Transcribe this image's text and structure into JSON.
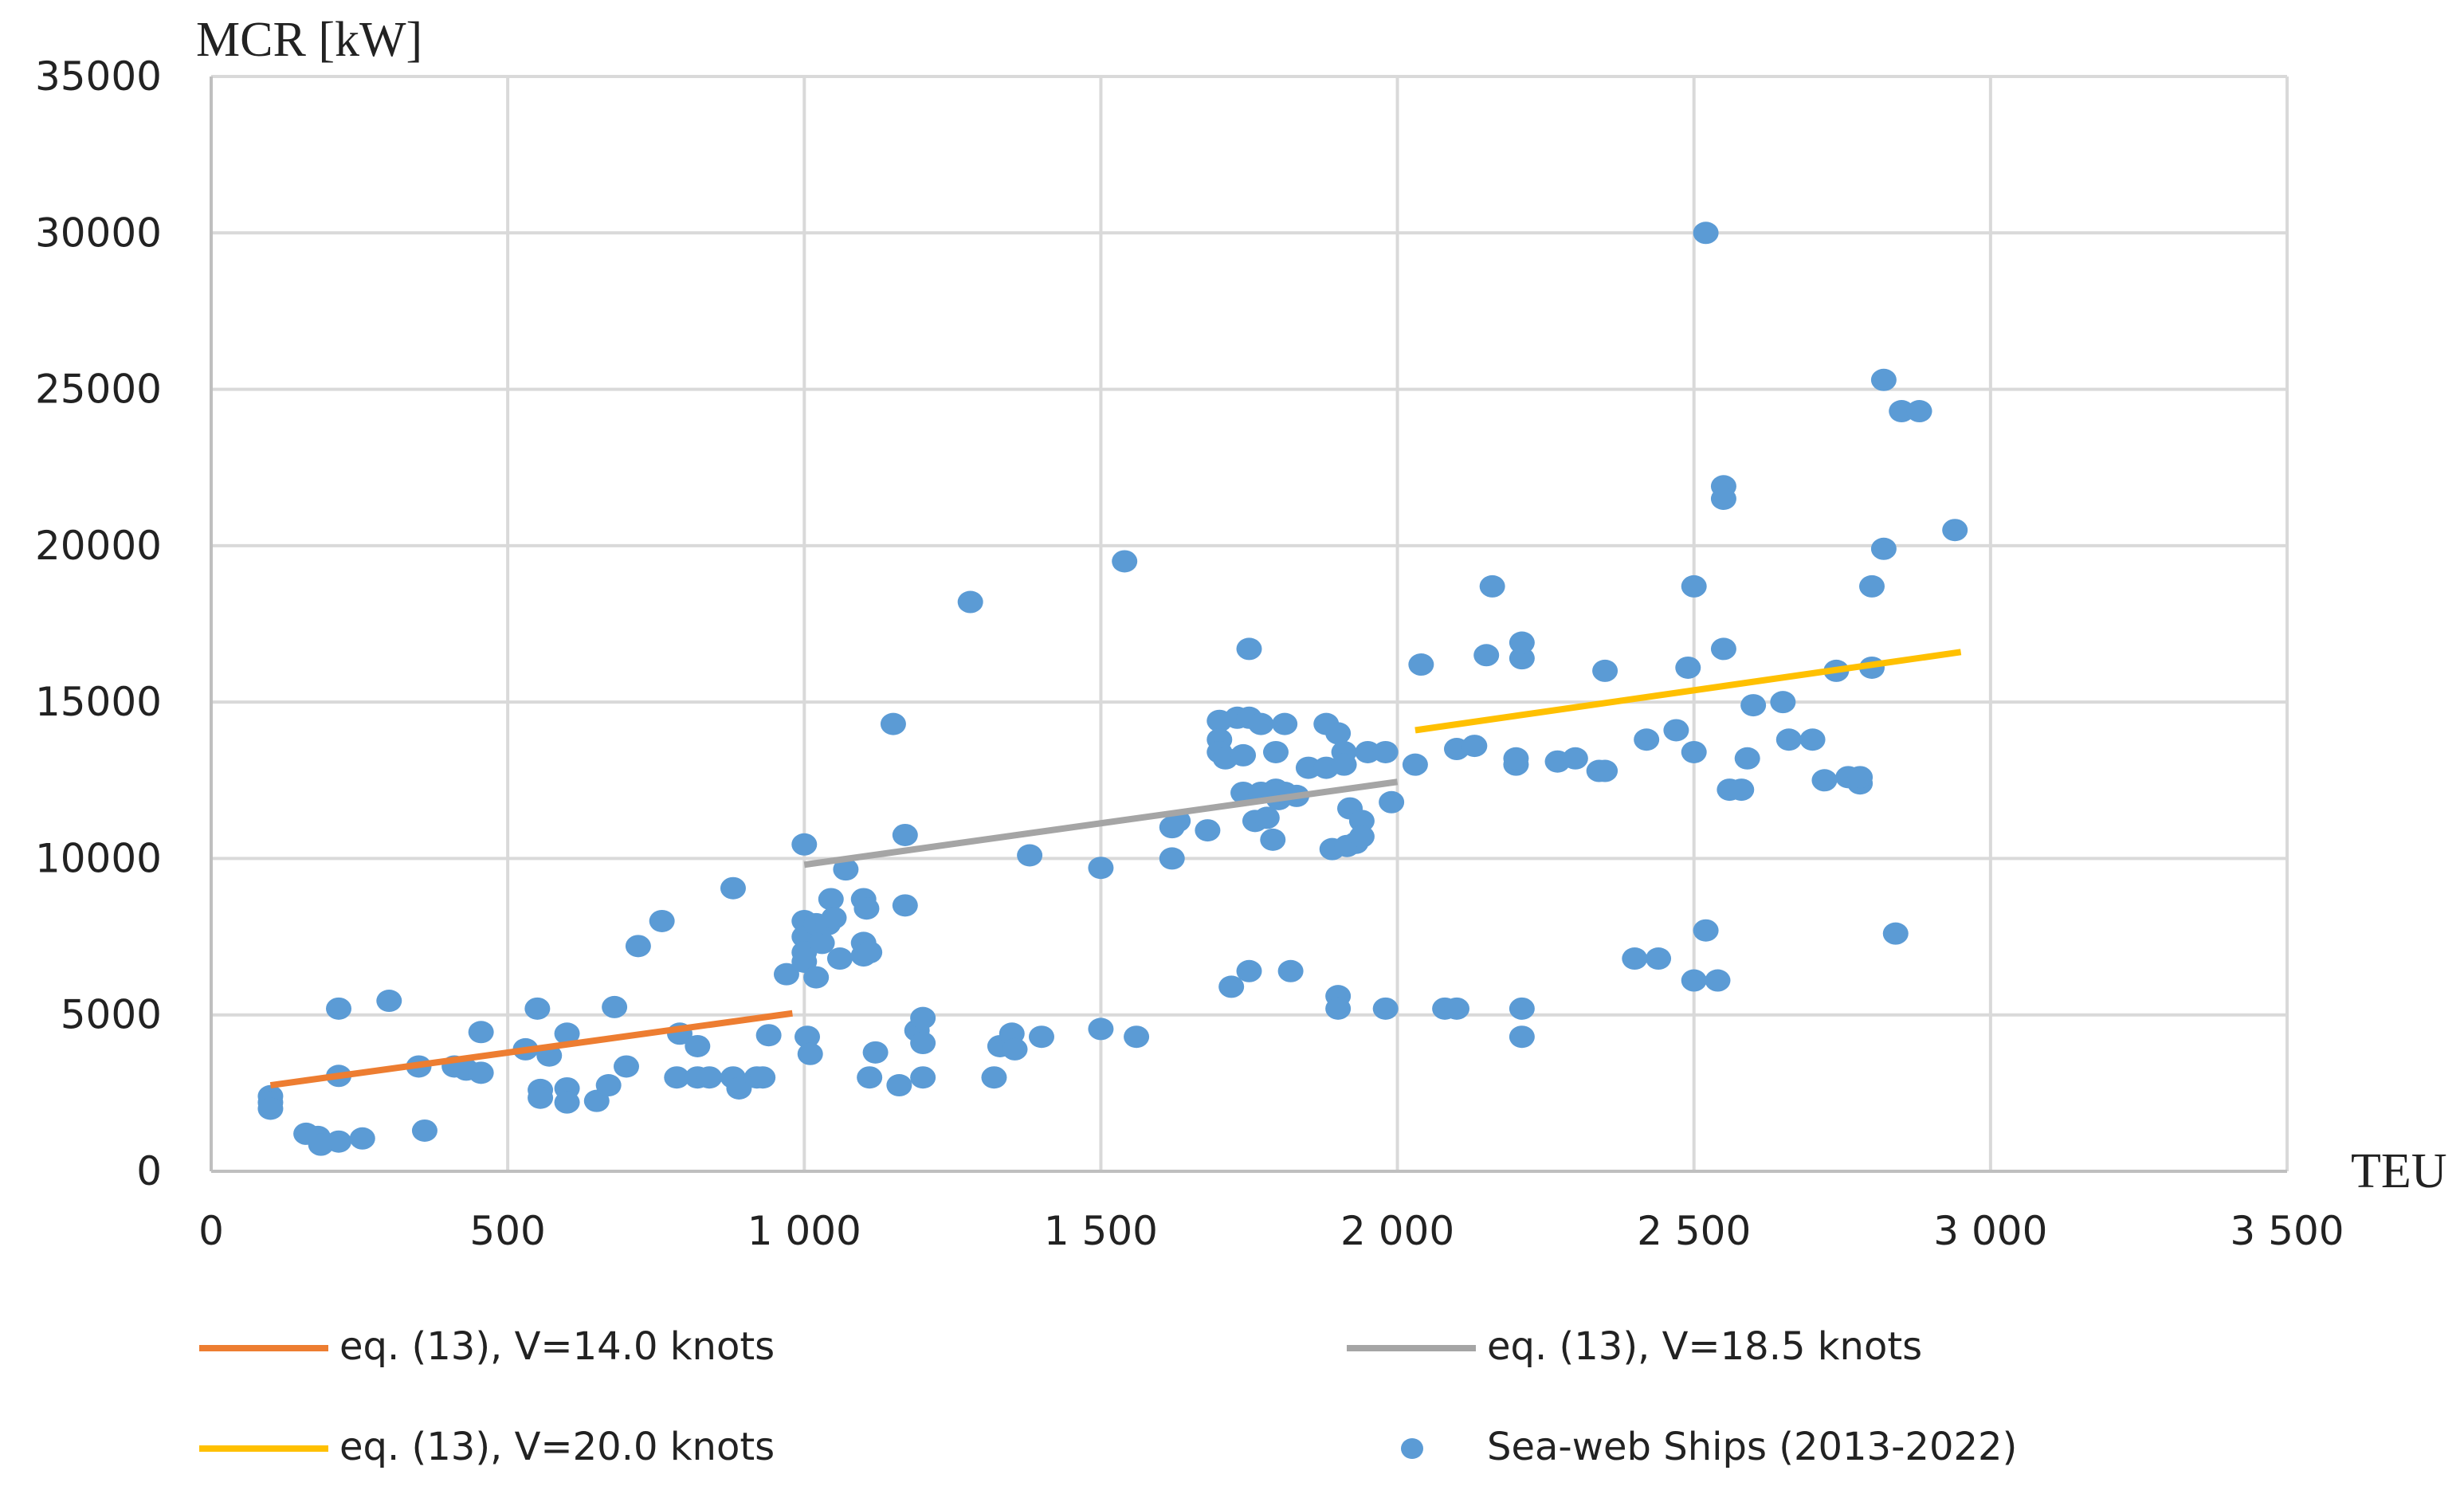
{
  "chart_data": {
    "type": "scatter",
    "title": "",
    "xlabel": "TEU",
    "ylabel": "MCR [kW]",
    "xlim": [
      0,
      3500
    ],
    "ylim": [
      0,
      35000
    ],
    "grid": true,
    "x_ticks": [
      0,
      500,
      1000,
      1500,
      2000,
      2500,
      3000,
      3500
    ],
    "x_tick_labels": [
      "0",
      "500",
      "1 000",
      "1 500",
      "2 000",
      "2 500",
      "3 000",
      "3 500"
    ],
    "y_ticks": [
      0,
      5000,
      10000,
      15000,
      20000,
      25000,
      30000,
      35000
    ],
    "y_tick_labels": [
      "0",
      "5000",
      "10000",
      "15000",
      "20000",
      "25000",
      "30000",
      "35000"
    ],
    "legend_position": "bottom",
    "series": [
      {
        "name": "eq. (13), V=14.0 knots",
        "kind": "line",
        "color": "#ED7D31",
        "points": [
          [
            100,
            2750
          ],
          [
            980,
            5050
          ]
        ]
      },
      {
        "name": "eq. (13), V=18.5 knots",
        "kind": "line",
        "color": "#A5A5A5",
        "points": [
          [
            1000,
            9800
          ],
          [
            2000,
            12450
          ]
        ]
      },
      {
        "name": "eq. (13), V=20.0 knots",
        "kind": "line",
        "color": "#FFC000",
        "points": [
          [
            2030,
            14100
          ],
          [
            2950,
            16600
          ]
        ]
      },
      {
        "name": "Sea-web Ships (2013-2022)",
        "kind": "scatter",
        "color": "#5B9BD5",
        "points": [
          [
            100,
            2400
          ],
          [
            100,
            2200
          ],
          [
            100,
            2000
          ],
          [
            160,
            1200
          ],
          [
            180,
            1100
          ],
          [
            185,
            850
          ],
          [
            215,
            950
          ],
          [
            255,
            1050
          ],
          [
            360,
            1300
          ],
          [
            215,
            5200
          ],
          [
            300,
            5450
          ],
          [
            215,
            3050
          ],
          [
            350,
            3350
          ],
          [
            410,
            3350
          ],
          [
            430,
            3250
          ],
          [
            455,
            3150
          ],
          [
            455,
            4450
          ],
          [
            530,
            3900
          ],
          [
            550,
            5200
          ],
          [
            555,
            2600
          ],
          [
            555,
            2350
          ],
          [
            570,
            3700
          ],
          [
            600,
            4400
          ],
          [
            600,
            2650
          ],
          [
            600,
            2200
          ],
          [
            650,
            2250
          ],
          [
            670,
            2750
          ],
          [
            700,
            3350
          ],
          [
            680,
            5250
          ],
          [
            720,
            7200
          ],
          [
            760,
            8000
          ],
          [
            785,
            3000
          ],
          [
            790,
            4400
          ],
          [
            820,
            4000
          ],
          [
            820,
            3000
          ],
          [
            840,
            3000
          ],
          [
            880,
            9050
          ],
          [
            880,
            3000
          ],
          [
            890,
            2650
          ],
          [
            920,
            3000
          ],
          [
            930,
            3000
          ],
          [
            940,
            4350
          ],
          [
            970,
            6300
          ],
          [
            1000,
            10450
          ],
          [
            1000,
            8000
          ],
          [
            1000,
            7500
          ],
          [
            1000,
            7000
          ],
          [
            1000,
            6700
          ],
          [
            1005,
            4300
          ],
          [
            1010,
            3750
          ],
          [
            1020,
            7900
          ],
          [
            1020,
            6200
          ],
          [
            1030,
            7300
          ],
          [
            1040,
            7900
          ],
          [
            1045,
            8700
          ],
          [
            1050,
            8100
          ],
          [
            1060,
            6800
          ],
          [
            1070,
            9650
          ],
          [
            1100,
            8700
          ],
          [
            1100,
            7300
          ],
          [
            1100,
            6900
          ],
          [
            1105,
            8400
          ],
          [
            1110,
            7000
          ],
          [
            1110,
            3000
          ],
          [
            1120,
            3800
          ],
          [
            1150,
            14300
          ],
          [
            1160,
            2750
          ],
          [
            1170,
            8500
          ],
          [
            1170,
            10750
          ],
          [
            1190,
            4500
          ],
          [
            1200,
            4900
          ],
          [
            1200,
            4100
          ],
          [
            1200,
            3000
          ],
          [
            1280,
            18200
          ],
          [
            1320,
            3000
          ],
          [
            1330,
            4000
          ],
          [
            1350,
            4400
          ],
          [
            1355,
            3900
          ],
          [
            1380,
            10100
          ],
          [
            1400,
            4300
          ],
          [
            1500,
            4550
          ],
          [
            1500,
            9700
          ],
          [
            1540,
            19500
          ],
          [
            1560,
            4300
          ],
          [
            1620,
            11000
          ],
          [
            1620,
            10000
          ],
          [
            1630,
            11200
          ],
          [
            1680,
            10900
          ],
          [
            1700,
            14400
          ],
          [
            1700,
            13800
          ],
          [
            1700,
            13400
          ],
          [
            1710,
            13200
          ],
          [
            1720,
            5900
          ],
          [
            1730,
            14500
          ],
          [
            1740,
            12100
          ],
          [
            1740,
            13300
          ],
          [
            1750,
            6400
          ],
          [
            1750,
            16700
          ],
          [
            1750,
            14500
          ],
          [
            1760,
            11200
          ],
          [
            1770,
            14300
          ],
          [
            1770,
            12100
          ],
          [
            1780,
            11300
          ],
          [
            1790,
            10600
          ],
          [
            1795,
            13400
          ],
          [
            1795,
            12200
          ],
          [
            1800,
            11900
          ],
          [
            1810,
            14300
          ],
          [
            1810,
            12100
          ],
          [
            1820,
            6400
          ],
          [
            1830,
            12000
          ],
          [
            1850,
            12900
          ],
          [
            1880,
            12900
          ],
          [
            1880,
            14300
          ],
          [
            1890,
            10300
          ],
          [
            1900,
            14000
          ],
          [
            1900,
            5600
          ],
          [
            1900,
            5200
          ],
          [
            1910,
            13400
          ],
          [
            1910,
            13000
          ],
          [
            1915,
            10400
          ],
          [
            1920,
            11600
          ],
          [
            1930,
            10500
          ],
          [
            1940,
            11200
          ],
          [
            1940,
            10700
          ],
          [
            1950,
            13400
          ],
          [
            1980,
            13400
          ],
          [
            1980,
            5200
          ],
          [
            1990,
            11800
          ],
          [
            2030,
            13000
          ],
          [
            2040,
            16200
          ],
          [
            2080,
            5200
          ],
          [
            2100,
            5200
          ],
          [
            2100,
            13500
          ],
          [
            2130,
            13600
          ],
          [
            2150,
            16500
          ],
          [
            2160,
            18700
          ],
          [
            2200,
            13000
          ],
          [
            2200,
            13200
          ],
          [
            2210,
            16400
          ],
          [
            2210,
            16900
          ],
          [
            2210,
            5200
          ],
          [
            2210,
            4300
          ],
          [
            2270,
            13100
          ],
          [
            2300,
            13200
          ],
          [
            2340,
            12800
          ],
          [
            2350,
            12800
          ],
          [
            2350,
            16000
          ],
          [
            2400,
            6800
          ],
          [
            2440,
            6800
          ],
          [
            2420,
            13800
          ],
          [
            2470,
            14100
          ],
          [
            2490,
            16100
          ],
          [
            2500,
            18700
          ],
          [
            2500,
            13400
          ],
          [
            2500,
            6100
          ],
          [
            2520,
            30000
          ],
          [
            2520,
            7700
          ],
          [
            2540,
            6100
          ],
          [
            2550,
            21900
          ],
          [
            2550,
            21500
          ],
          [
            2550,
            16700
          ],
          [
            2560,
            12200
          ],
          [
            2580,
            12200
          ],
          [
            2590,
            13200
          ],
          [
            2600,
            14900
          ],
          [
            2650,
            15000
          ],
          [
            2660,
            13800
          ],
          [
            2700,
            13800
          ],
          [
            2720,
            12500
          ],
          [
            2740,
            16000
          ],
          [
            2760,
            12600
          ],
          [
            2780,
            12400
          ],
          [
            2780,
            12600
          ],
          [
            2800,
            18700
          ],
          [
            2800,
            16100
          ],
          [
            2820,
            25300
          ],
          [
            2820,
            19900
          ],
          [
            2840,
            7600
          ],
          [
            2850,
            24300
          ],
          [
            2880,
            24300
          ],
          [
            2940,
            20500
          ]
        ]
      }
    ]
  }
}
